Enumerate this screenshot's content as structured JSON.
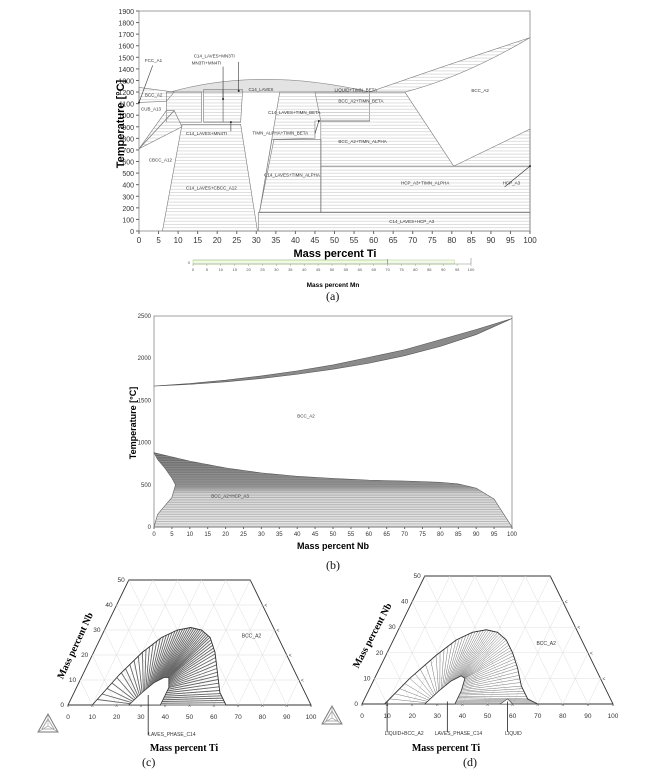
{
  "captions": {
    "a": "(a)",
    "b": "(b)",
    "c": "(c)",
    "d": "(d)"
  },
  "chart_data": [
    {
      "id": "a",
      "type": "area",
      "title": "",
      "xlabel": "Mass percent Ti",
      "ylabel": "Temperature [°C]",
      "xlim": [
        0,
        100
      ],
      "ylim": [
        0,
        1900
      ],
      "xticks": [
        0,
        5,
        10,
        15,
        20,
        25,
        30,
        35,
        40,
        45,
        50,
        55,
        60,
        65,
        70,
        75,
        80,
        85,
        90,
        95,
        100
      ],
      "yticks": [
        0,
        100,
        200,
        300,
        400,
        500,
        600,
        700,
        800,
        900,
        1000,
        1100,
        1200,
        1300,
        1400,
        1500,
        1600,
        1700,
        1800,
        1900
      ],
      "grid": false,
      "phase_labels": [
        {
          "text": "FCC_A1",
          "x": 1.5,
          "y": 1460
        },
        {
          "text": "BCC_A2",
          "x": 1.5,
          "y": 1160
        },
        {
          "text": "CUB_A13",
          "x": 0.5,
          "y": 1040
        },
        {
          "text": "CBCC_A12",
          "x": 2.5,
          "y": 600
        },
        {
          "text": "C14_LAVES+MN3TI",
          "x": 14,
          "y": 1500
        },
        {
          "text": "MN3TI+MN4TI",
          "x": 13.5,
          "y": 1440
        },
        {
          "text": "C14_LAVES",
          "x": 28,
          "y": 1210
        },
        {
          "text": "C14_LAVES+MN4TI",
          "x": 12,
          "y": 830
        },
        {
          "text": "C14_LAVES+CBCC_A12",
          "x": 12,
          "y": 360
        },
        {
          "text": "LIQUID+TIMN_BETA",
          "x": 50,
          "y": 1205
        },
        {
          "text": "BCC_A2+TIMN_BETA",
          "x": 51,
          "y": 1110
        },
        {
          "text": "C14_LAVES+TIMN_BETA",
          "x": 33,
          "y": 1010
        },
        {
          "text": "TIMN_ALPHA+TIMN_BETA",
          "x": 29,
          "y": 835
        },
        {
          "text": "BCC_A2+TIMN_ALPHA",
          "x": 51,
          "y": 760
        },
        {
          "text": "C14_LAVES+TIMN_ALPHA",
          "x": 32,
          "y": 470
        },
        {
          "text": "HCP_A3+TIMN_ALPHA",
          "x": 67,
          "y": 400
        },
        {
          "text": "HCP_A3",
          "x": 93,
          "y": 400
        },
        {
          "text": "BCC_A2",
          "x": 85,
          "y": 1200
        },
        {
          "text": "C14_LAVES+HCP_A3",
          "x": 64,
          "y": 70
        }
      ],
      "boundaries": {
        "liquidus_dome_peak": {
          "x": 31,
          "y": 1320
        },
        "ti_melting_point": {
          "x": 100,
          "y": 1670
        },
        "eutectoid_bcc_hcp": {
          "x": 80.5,
          "y": 560
        },
        "laves_limit_low_T": {
          "x": 30.5,
          "y": 0
        },
        "two_phase_tie_line_bottom": 160,
        "timn_alpha_boundary_T": 800,
        "timn_beta_boundary_T": 950
      },
      "secondary_axis": {
        "xlabel": "Mass percent Mn",
        "xlim": [
          0,
          100
        ],
        "xticks": [
          0,
          5,
          10,
          15,
          20,
          25,
          30,
          35,
          40,
          45,
          50,
          55,
          60,
          65,
          70,
          75,
          80,
          85,
          90,
          95,
          100
        ],
        "ytick": "0",
        "marker_x": 70,
        "end_x": 94,
        "color": "#b8d98a"
      }
    },
    {
      "id": "b",
      "type": "area",
      "title": "",
      "xlabel": "Mass percent Nb",
      "ylabel": "Temperature [°C]",
      "xlim": [
        0,
        100
      ],
      "ylim": [
        0,
        2500
      ],
      "xticks": [
        0,
        5,
        10,
        15,
        20,
        25,
        30,
        35,
        40,
        45,
        50,
        55,
        60,
        65,
        70,
        75,
        80,
        85,
        90,
        95,
        100
      ],
      "yticks": [
        0,
        500,
        1000,
        1500,
        2000,
        2500
      ],
      "grid": false,
      "phase_labels": [
        {
          "text": "BCC_A2",
          "x": 40,
          "y": 1300
        },
        {
          "text": "BCC_A2+HCP_A3",
          "x": 16,
          "y": 350
        }
      ],
      "liquidus": {
        "x": [
          0,
          10,
          20,
          30,
          40,
          50,
          60,
          70,
          80,
          90,
          100
        ],
        "y": [
          1670,
          1700,
          1740,
          1790,
          1850,
          1920,
          2010,
          2100,
          2220,
          2340,
          2470
        ]
      },
      "solidus": {
        "x": [
          0,
          10,
          20,
          30,
          40,
          50,
          60,
          70,
          80,
          90,
          100
        ],
        "y": [
          1670,
          1690,
          1720,
          1760,
          1810,
          1870,
          1940,
          2030,
          2140,
          2280,
          2470
        ]
      },
      "beta_transus": {
        "x": [
          0,
          5,
          10,
          20,
          30,
          40,
          50,
          60,
          70,
          80,
          85,
          90,
          95,
          100
        ],
        "y": [
          880,
          830,
          780,
          700,
          640,
          600,
          575,
          555,
          545,
          530,
          510,
          460,
          330,
          0
        ]
      },
      "alpha_boundary": {
        "x": [
          0,
          1,
          3,
          5,
          6,
          5,
          3,
          1,
          0
        ],
        "y": [
          880,
          800,
          700,
          580,
          500,
          350,
          250,
          150,
          0
        ]
      }
    },
    {
      "id": "c",
      "type": "ternary",
      "title": "",
      "xlabel": "Mass percent Ti",
      "ylabel": "Mass percent Nb",
      "xticks": [
        0,
        10,
        20,
        30,
        40,
        50,
        60,
        70,
        80,
        90,
        100
      ],
      "yticks": [
        0,
        10,
        20,
        30,
        40,
        50
      ],
      "phase_labels": [
        {
          "text": "BCC_A2",
          "ti": 58,
          "nb": 27
        },
        {
          "text": "LAVES_PHASE_C14",
          "ti": 33,
          "nb": -12
        }
      ],
      "two_phase_outer": {
        "ti": [
          10,
          15,
          20,
          25,
          30,
          35,
          40,
          45,
          50,
          55,
          60,
          65
        ],
        "nb": [
          0,
          12,
          21,
          27,
          30,
          31,
          30,
          27,
          21,
          13,
          5,
          0
        ]
      },
      "laves_region": {
        "ti": [
          25,
          28,
          31,
          34,
          36,
          38,
          38
        ],
        "nb": [
          0,
          5,
          9,
          11,
          11,
          7,
          0
        ]
      }
    },
    {
      "id": "d",
      "type": "ternary",
      "title": "",
      "xlabel": "Mass percent Ti",
      "ylabel": "Mass percent Nb",
      "xticks": [
        0,
        10,
        20,
        30,
        40,
        50,
        60,
        70,
        80,
        90,
        100
      ],
      "yticks": [
        0,
        10,
        20,
        30,
        40,
        50
      ],
      "phase_labels": [
        {
          "text": "BCC_A2",
          "ti": 58,
          "nb": 23
        },
        {
          "text": "LIQUID+BCC_A2",
          "ti": 9,
          "nb": -12
        },
        {
          "text": "LAVES_PHASE_C14",
          "ti": 29,
          "nb": -12
        },
        {
          "text": "LIQUID",
          "ti": 57,
          "nb": -12
        }
      ],
      "two_phase_outer": {
        "ti": [
          9,
          14,
          20,
          25,
          30,
          35,
          40,
          45,
          50,
          55,
          60,
          65,
          70
        ],
        "nb": [
          0,
          10,
          19,
          25,
          28,
          29,
          28,
          25,
          20,
          14,
          7,
          2,
          0
        ]
      },
      "laves_region": {
        "ti": [
          25,
          28,
          31,
          34,
          36,
          37,
          37
        ],
        "nb": [
          0,
          5,
          9,
          11,
          10,
          5,
          0
        ]
      }
    }
  ]
}
